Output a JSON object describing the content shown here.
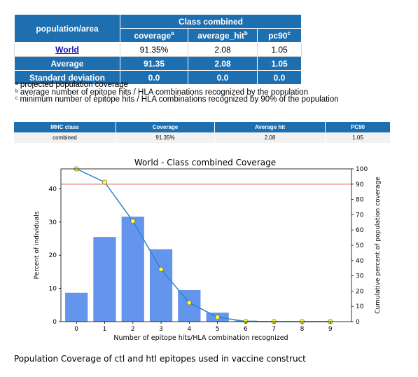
{
  "summary_table": {
    "col_group_header": "population/area",
    "class_header": "Class combined",
    "columns": [
      {
        "label": "coverage",
        "sup": "a"
      },
      {
        "label": "average_hit",
        "sup": "b"
      },
      {
        "label": "pc90",
        "sup": "c"
      }
    ],
    "rows": [
      {
        "name": "World",
        "values": [
          "91.35%",
          "2.08",
          "1.05"
        ]
      },
      {
        "name": "Average",
        "values": [
          "91.35",
          "2.08",
          "1.05"
        ]
      },
      {
        "name": "Standard deviation",
        "values": [
          "0.0",
          "0.0",
          "0.0"
        ]
      }
    ]
  },
  "footnotes": [
    {
      "sup": "a",
      "text": "projected population coverage"
    },
    {
      "sup": "b",
      "text": "average number of epitope hits / HLA combinations recognized by the population"
    },
    {
      "sup": "c",
      "text": "minimum number of epitope hits / HLA combinations recognized by 90% of the population"
    }
  ],
  "mhc_table": {
    "headers": [
      "MHC class",
      "Coverage",
      "Average hit",
      "PC90"
    ],
    "row": [
      "combined",
      "91.35%",
      "2.08",
      "1.05"
    ]
  },
  "chart_data": {
    "type": "bar",
    "title": "World - Class combined Coverage",
    "xlabel": "Number of epitope hits/HLA combination recognized",
    "ylabel": "Percent of individuals",
    "y2label": "Cumulative percent of population coverage",
    "categories": [
      "0",
      "1",
      "2",
      "3",
      "4",
      "5",
      "6",
      "7",
      "8",
      "9"
    ],
    "ylim": [
      0,
      46
    ],
    "y2lim": [
      0,
      100
    ],
    "yticks": [
      "0",
      "10",
      "20",
      "30",
      "40"
    ],
    "y2ticks": [
      "0",
      "10",
      "20",
      "30",
      "40",
      "50",
      "60",
      "70",
      "80",
      "90",
      "100"
    ],
    "series": [
      {
        "kind": "bar",
        "axis": "left",
        "values": [
          8.7,
          25.5,
          31.6,
          21.8,
          9.5,
          2.7,
          0.3,
          0,
          0,
          0
        ]
      },
      {
        "kind": "line",
        "axis": "right",
        "values": [
          100,
          91.3,
          65.8,
          34.2,
          12.4,
          2.9,
          0.2,
          0,
          0,
          0
        ]
      }
    ],
    "reference_line": {
      "axis": "right",
      "value": 90
    },
    "colors": {
      "bar": "#6495ed",
      "line": "#2c85c6",
      "marker": "#ffff33",
      "reference": "#e8645a"
    },
    "grid": false
  },
  "caption": "Population Coverage of ctl and htl epitopes used in vaccine construct"
}
